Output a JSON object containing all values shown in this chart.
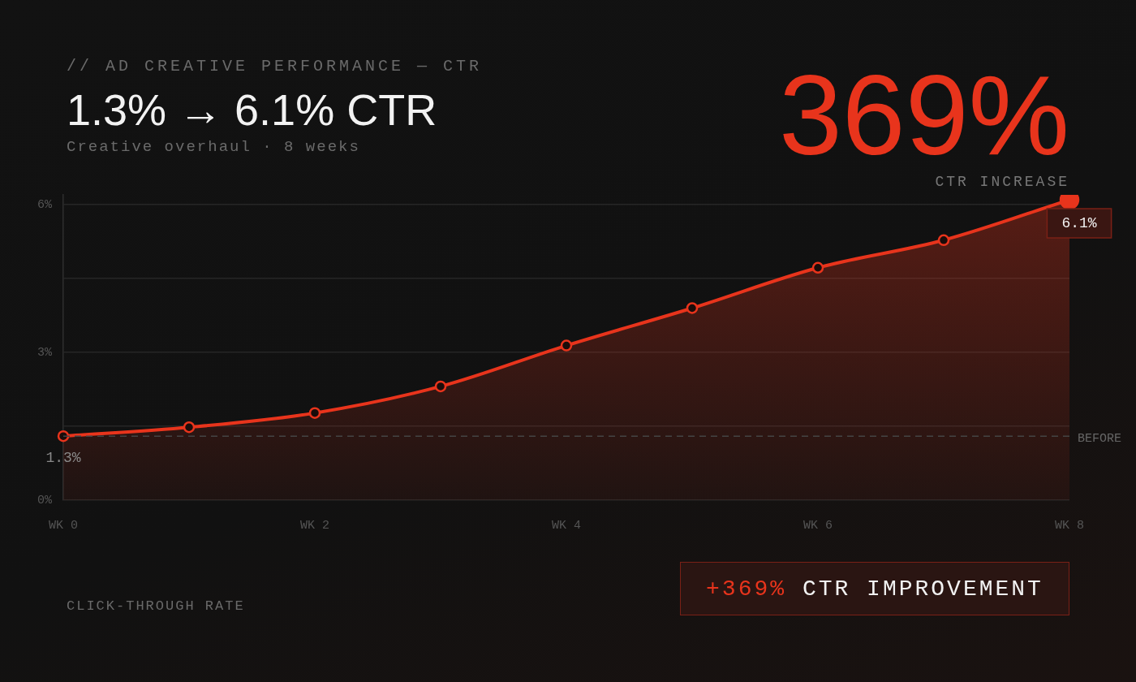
{
  "chart_data": {
    "type": "area",
    "title": "// AD CREATIVE PERFORMANCE — CTR",
    "subtitle": "1.3% → 6.1% CTR",
    "annotations": [
      "Creative overhaul · 8 weeks",
      "369%",
      "CTR INCREASE",
      "CLICK-THROUGH RATE",
      "+369% CTR IMPROVEMENT"
    ],
    "categories": [
      "WK 0",
      null,
      "WK 2",
      null,
      "WK 4",
      null,
      "WK 6",
      null,
      "WK 8"
    ],
    "series": [
      {
        "color": "#e8341c",
        "values": [
          1.3,
          1.48,
          1.77,
          2.31,
          3.14,
          3.9,
          4.72,
          5.28,
          6.1
        ],
        "value_labels": [
          "1.3%",
          null,
          null,
          null,
          null,
          null,
          null,
          null,
          "6.1%"
        ]
      }
    ],
    "ylim": [
      0,
      6.2
    ],
    "yticks": [
      {
        "value": 0,
        "label": "0%"
      },
      {
        "value": 1.5,
        "label": null
      },
      {
        "value": 3,
        "label": "3%"
      },
      {
        "value": 4.5,
        "label": null
      },
      {
        "value": 6,
        "label": "6%"
      }
    ],
    "grid": "y",
    "marker": "circle",
    "line_style": "solid",
    "ref_lines": [
      {
        "axis": "y",
        "value": 1.3,
        "label": "BEFORE",
        "line_style": "dashed"
      }
    ]
  }
}
